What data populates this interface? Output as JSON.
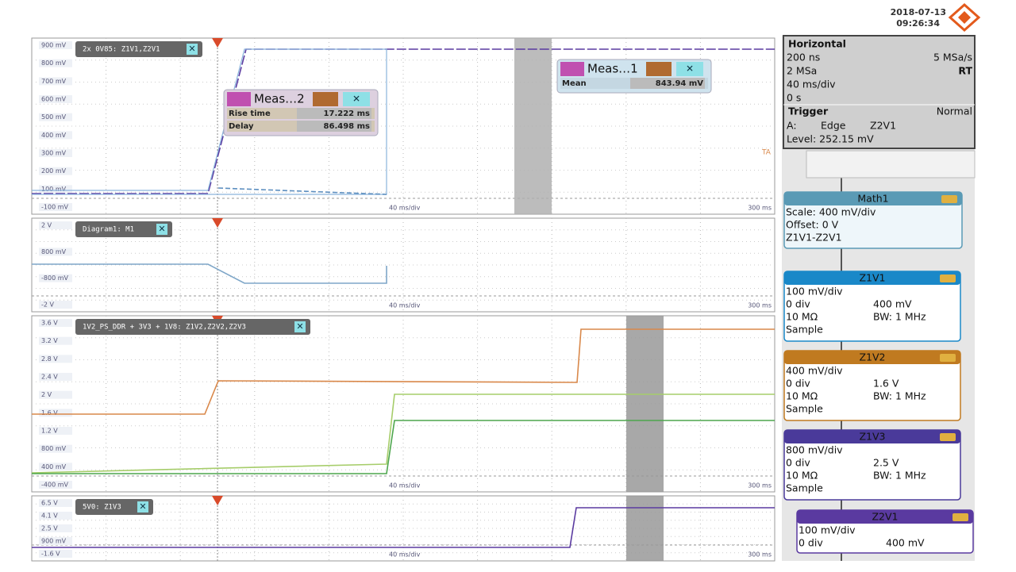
{
  "header": {
    "date": "2018-07-13",
    "time": "09:26:34"
  },
  "diagrams": [
    {
      "title": "2x 0V85: Z1V1,Z2V1",
      "y_labels": [
        "900 mV",
        "800 mV",
        "700 mV",
        "600 mV",
        "500 mV",
        "400 mV",
        "300 mV",
        "200 mV",
        "100 mV",
        "-100 mV"
      ],
      "x_scale": "40 ms/div",
      "x_end": "300 ms",
      "marker": "TA"
    },
    {
      "title": "Diagram1: M1",
      "y_labels": [
        "2 V",
        "800 mV",
        "-800 mV",
        "-2 V"
      ],
      "x_scale": "40 ms/div",
      "x_end": "300 ms"
    },
    {
      "title": "1V2_PS_DDR + 3V3 + 1V8: Z1V2,Z2V2,Z2V3",
      "y_labels": [
        "3.6 V",
        "3.2 V",
        "2.8 V",
        "2.4 V",
        "2 V",
        "1.6 V",
        "1.2 V",
        "800 mV",
        "400 mV",
        "-400 mV"
      ],
      "x_scale": "40 ms/div",
      "x_end": "300 ms"
    },
    {
      "title": "5V0: Z1V3",
      "y_labels": [
        "6.5 V",
        "4.1 V",
        "2.5 V",
        "900 mV",
        "-1.6 V"
      ],
      "x_scale": "40 ms/div",
      "x_end": "300 ms"
    }
  ],
  "measurements": [
    {
      "title": "Meas…2",
      "rows": [
        [
          "Rise time",
          "17.222 ms"
        ],
        [
          "Delay",
          "86.498 ms"
        ]
      ]
    },
    {
      "title": "Meas…1",
      "rows": [
        [
          "Mean",
          "843.94 mV"
        ]
      ]
    }
  ],
  "horizontal": {
    "title": "Horizontal",
    "rows": [
      [
        "200 ns",
        "5 MSa/s"
      ],
      [
        "2 MSa",
        "RT"
      ],
      [
        "40 ms/div"
      ],
      [
        "0 s"
      ]
    ]
  },
  "trigger": {
    "title": "Trigger",
    "mode": "Normal",
    "source_label": "A:",
    "kind": "Edge",
    "source": "Z2V1",
    "level": "Level: 252.15 mV"
  },
  "channels": [
    {
      "name": "Math1",
      "rows": [
        [
          "Scale:  400 mV/div"
        ],
        [
          "Offset: 0 V"
        ],
        [
          "Z1V1-Z2V1"
        ]
      ]
    },
    {
      "name": "Z1V1",
      "rows": [
        [
          "100 mV/div"
        ],
        [
          "0 div",
          "400 mV"
        ],
        [
          "10 MΩ",
          "BW: 1 MHz"
        ],
        [
          "Sample"
        ]
      ]
    },
    {
      "name": "Z1V2",
      "rows": [
        [
          "400 mV/div"
        ],
        [
          "0 div",
          "1.6 V"
        ],
        [
          "10 MΩ",
          "BW: 1 MHz"
        ],
        [
          "Sample"
        ]
      ]
    },
    {
      "name": "Z1V3",
      "rows": [
        [
          "800 mV/div"
        ],
        [
          "0 div",
          "2.5 V"
        ],
        [
          "10 MΩ",
          "BW: 1 MHz"
        ],
        [
          "Sample"
        ]
      ]
    },
    {
      "name": "Z2V1",
      "rows": [
        [
          "100 mV/div"
        ],
        [
          "0 div",
          "400 mV"
        ]
      ]
    }
  ]
}
